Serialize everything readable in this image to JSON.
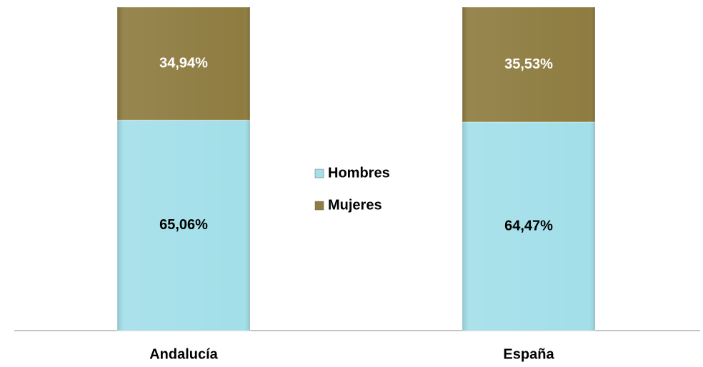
{
  "chart_data": {
    "type": "stacked_bar",
    "categories": [
      "Andalucía",
      "España"
    ],
    "series": [
      {
        "name": "Hombres",
        "color": "#a3dfe9",
        "label_color": "#000000",
        "values": [
          65.06,
          64.47
        ],
        "value_labels": [
          "65,06%",
          "64,47%"
        ]
      },
      {
        "name": "Mujeres",
        "color": "#8e7c40",
        "label_color": "#ffffff",
        "values": [
          34.94,
          35.53
        ],
        "value_labels": [
          "34,94%",
          "35,53%"
        ]
      }
    ],
    "ylim": [
      0,
      100
    ]
  }
}
